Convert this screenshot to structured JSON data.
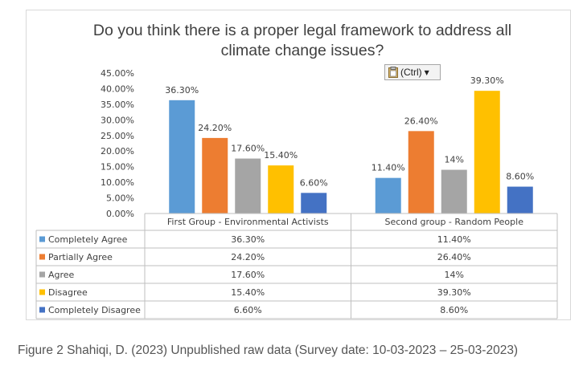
{
  "chart_data": {
    "type": "bar",
    "title_lines": [
      "Do you think there is a proper legal framework to address all",
      "climate change issues?"
    ],
    "categories": [
      "First Group - Environmental Activists",
      "Second group - Random People"
    ],
    "ylim": [
      0,
      45
    ],
    "yticks": [
      "0.00%",
      "5.00%",
      "10.00%",
      "15.00%",
      "20.00%",
      "25.00%",
      "30.00%",
      "35.00%",
      "40.00%",
      "45.00%"
    ],
    "series": [
      {
        "name": "Completely Agree",
        "color": "#5B9BD5",
        "values": [
          36.3,
          11.4
        ],
        "labels": [
          "36.30%",
          "11.40%"
        ]
      },
      {
        "name": "Partially Agree",
        "color": "#ED7D31",
        "values": [
          24.2,
          26.4
        ],
        "labels": [
          "24.20%",
          "26.40%"
        ]
      },
      {
        "name": "Agree",
        "color": "#A5A5A5",
        "values": [
          17.6,
          14
        ],
        "labels": [
          "17.60%",
          "14%"
        ]
      },
      {
        "name": "Disagree",
        "color": "#FFC000",
        "values": [
          15.4,
          39.3
        ],
        "labels": [
          "15.40%",
          "39.30%"
        ]
      },
      {
        "name": "Completely Disagree",
        "color": "#4472C4",
        "values": [
          6.6,
          8.6
        ],
        "labels": [
          "6.60%",
          "8.60%"
        ]
      }
    ],
    "data_table": true
  },
  "paste_options": {
    "label": "(Ctrl)"
  },
  "caption": "Figure 2 Shahiqi, D. (2023) Unpublished raw data (Survey date: 10-03-2023 – 25-03-2023)"
}
